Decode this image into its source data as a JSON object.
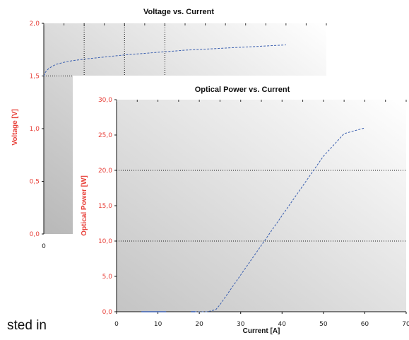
{
  "background_text": "sted in",
  "chart_data": [
    {
      "type": "line",
      "title": "Voltage vs. Current",
      "ylabel": "Voltage [V]",
      "xlabel": "",
      "xlim": [
        0,
        70
      ],
      "ylim": [
        0,
        2
      ],
      "y_ticks": [
        "0,0",
        "0,5",
        "1,0",
        "1,5",
        "2,0"
      ],
      "x_ticks": [
        "0"
      ],
      "grid_y": [
        1.5
      ],
      "grid_x": [
        10,
        20,
        30
      ],
      "series": [
        {
          "color": "#3a5fb0",
          "x": [
            0.0,
            0.3,
            0.7,
            1.2,
            2,
            3,
            5,
            7,
            10,
            15,
            20,
            25,
            30,
            35,
            40,
            45,
            50,
            55,
            60
          ],
          "y": [
            1.5,
            1.53,
            1.55,
            1.57,
            1.59,
            1.61,
            1.63,
            1.645,
            1.66,
            1.68,
            1.7,
            1.715,
            1.73,
            1.745,
            1.755,
            1.765,
            1.775,
            1.785,
            1.795
          ]
        }
      ]
    },
    {
      "type": "line",
      "title": "Optical Power vs. Current",
      "xlabel": "Current [A]",
      "ylabel": "Optical Power [W]",
      "xlim": [
        0,
        70
      ],
      "ylim": [
        0,
        30
      ],
      "x_ticks": [
        "0",
        "10",
        "20",
        "30",
        "40",
        "50",
        "60",
        "70"
      ],
      "y_ticks": [
        "0,0",
        "5,0",
        "10,0",
        "15,0",
        "20,0",
        "25,0",
        "30,0"
      ],
      "grid_y": [
        10,
        20
      ],
      "series": [
        {
          "color": "#3a5fb0",
          "x": [
            6,
            12,
            18,
            22,
            24,
            25,
            30,
            35,
            40,
            45,
            50,
            55,
            60
          ],
          "y": [
            0,
            0,
            0,
            0,
            0.3,
            1.0,
            5.2,
            9.4,
            13.6,
            17.8,
            22.0,
            25.2,
            26.0
          ]
        }
      ]
    }
  ]
}
